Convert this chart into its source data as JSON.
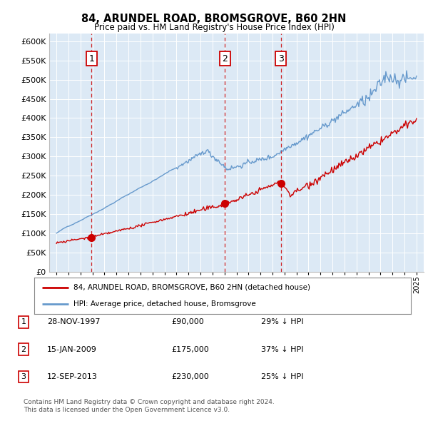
{
  "title1": "84, ARUNDEL ROAD, BROMSGROVE, B60 2HN",
  "title2": "Price paid vs. HM Land Registry's House Price Index (HPI)",
  "legend_label_red": "84, ARUNDEL ROAD, BROMSGROVE, B60 2HN (detached house)",
  "legend_label_blue": "HPI: Average price, detached house, Bromsgrove",
  "footer1": "Contains HM Land Registry data © Crown copyright and database right 2024.",
  "footer2": "This data is licensed under the Open Government Licence v3.0.",
  "transactions": [
    {
      "num": 1,
      "date": "28-NOV-1997",
      "price": 90000,
      "pct": "29% ↓ HPI",
      "year": 1997.92
    },
    {
      "num": 2,
      "date": "15-JAN-2009",
      "price": 175000,
      "pct": "37% ↓ HPI",
      "year": 2009.04
    },
    {
      "num": 3,
      "date": "12-SEP-2013",
      "price": 230000,
      "pct": "25% ↓ HPI",
      "year": 2013.7
    }
  ],
  "ylim": [
    0,
    620000
  ],
  "yticks": [
    0,
    50000,
    100000,
    150000,
    200000,
    250000,
    300000,
    350000,
    400000,
    450000,
    500000,
    550000,
    600000
  ],
  "plot_bg": "#dce9f5",
  "red_color": "#cc0000",
  "blue_color": "#6699cc",
  "fig_width": 6.0,
  "fig_height": 5.9
}
